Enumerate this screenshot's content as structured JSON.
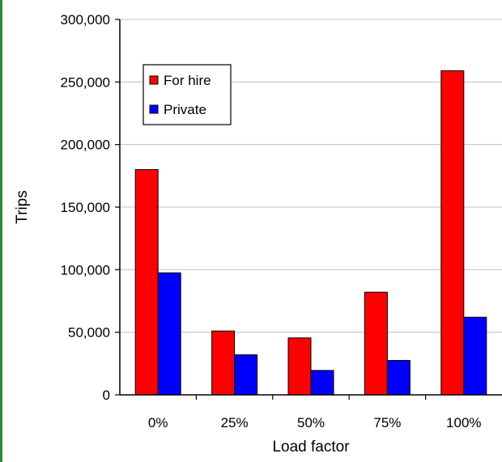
{
  "chart_data": {
    "type": "bar",
    "title": "",
    "xlabel": "Load factor",
    "ylabel": "Trips",
    "categories": [
      "0%",
      "25%",
      "50%",
      "75%",
      "100%"
    ],
    "series": [
      {
        "name": "For hire",
        "color": "#ff0000",
        "values": [
          180000,
          51000,
          45500,
          82000,
          259000
        ]
      },
      {
        "name": "Private",
        "color": "#0000ff",
        "values": [
          97500,
          32000,
          19500,
          27500,
          62000
        ]
      }
    ],
    "ylim": [
      0,
      300000
    ],
    "yticks": [
      0,
      50000,
      100000,
      150000,
      200000,
      250000,
      300000
    ],
    "ytick_labels": [
      "0",
      "50,000",
      "100,000",
      "150,000",
      "200,000",
      "250,000",
      "300,000"
    ],
    "grid": true,
    "legend_position": "top-left"
  }
}
